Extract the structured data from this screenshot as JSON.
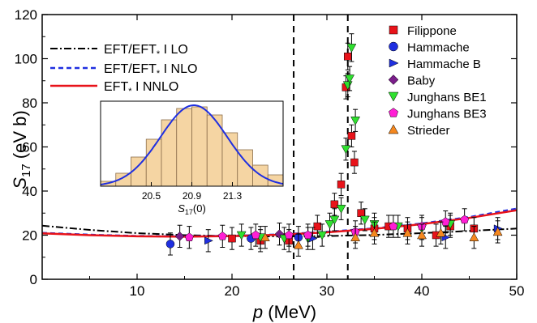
{
  "chart_data": {
    "type": "scatter",
    "xlabel_main": "p",
    "xlabel_unit": " (MeV)",
    "ylabel_main": "S",
    "ylabel_sub": "17",
    "ylabel_unit": " (eV b)",
    "xlim": [
      0,
      50
    ],
    "ylim": [
      0,
      120
    ],
    "x_ticks": [
      "10",
      "20",
      "30",
      "40",
      "50"
    ],
    "y_ticks": [
      "0",
      "20",
      "40",
      "60",
      "80",
      "100",
      "120"
    ],
    "vlines": [
      26.5,
      32.2
    ],
    "theory_curves": [
      {
        "label_main": "EFT/EFT",
        "label_sub": "*",
        "label_rest": " I LO",
        "style": "dashdot",
        "color": "#000000",
        "x": [
          0,
          5,
          10,
          15,
          20,
          25,
          30,
          35,
          40,
          45,
          50
        ],
        "y": [
          24.3,
          22.4,
          20.9,
          20.0,
          19.6,
          19.4,
          19.6,
          20.1,
          20.9,
          21.9,
          23.0
        ]
      },
      {
        "label_main": "EFT/EFT",
        "label_sub": "*",
        "label_rest": " I NLO",
        "style": "dashed",
        "color": "#1f2fe0",
        "x": [
          0,
          5,
          10,
          15,
          20,
          25,
          30,
          35,
          40,
          45,
          50
        ],
        "y": [
          21.0,
          20.2,
          19.6,
          19.4,
          19.7,
          20.3,
          21.5,
          23.1,
          25.3,
          28.2,
          32.0
        ]
      },
      {
        "label_main": "EFT",
        "label_sub": "*",
        "label_rest": " I NNLO",
        "style": "solid",
        "color": "#e8131a",
        "x": [
          0,
          5,
          10,
          15,
          20,
          25,
          30,
          35,
          40,
          45,
          50
        ],
        "y": [
          20.8,
          20.0,
          19.5,
          19.3,
          19.6,
          20.2,
          21.3,
          22.9,
          25.0,
          27.8,
          31.3
        ]
      }
    ],
    "series": [
      {
        "name": "Filippone",
        "marker": "square",
        "color": "#e8131a",
        "points": [
          [
            20,
            18.5
          ],
          [
            23,
            17.5
          ],
          [
            26,
            17.5
          ],
          [
            29,
            24
          ],
          [
            30.8,
            34
          ],
          [
            31.5,
            43
          ],
          [
            32,
            87
          ],
          [
            32.2,
            101
          ],
          [
            32.6,
            65
          ],
          [
            32.9,
            53
          ],
          [
            33.6,
            30
          ],
          [
            35,
            23
          ],
          [
            36.5,
            24
          ],
          [
            38.5,
            23
          ],
          [
            41.5,
            20
          ],
          [
            43,
            24
          ],
          [
            45.5,
            23
          ]
        ]
      },
      {
        "name": "Hammache",
        "marker": "circle",
        "color": "#1f2fe0",
        "points": [
          [
            13.5,
            16
          ],
          [
            22,
            18.5
          ],
          [
            27,
            19
          ]
        ]
      },
      {
        "name": "Hammache B",
        "marker": "triangle-right",
        "color": "#1f2fe0",
        "points": [
          [
            17.5,
            17.5
          ],
          [
            28.5,
            18.5
          ],
          [
            42.5,
            19
          ],
          [
            48,
            23
          ]
        ]
      },
      {
        "name": "Baby",
        "marker": "diamond",
        "color": "#7a1e8a",
        "points": [
          [
            14.5,
            19.5
          ],
          [
            25,
            20.5
          ]
        ]
      },
      {
        "name": "Junghans BE1",
        "marker": "triangle-down",
        "color": "#2fe02f",
        "points": [
          [
            21,
            20
          ],
          [
            23,
            19
          ],
          [
            25.5,
            18.5
          ],
          [
            28,
            18.5
          ],
          [
            29.5,
            20
          ],
          [
            30.3,
            25
          ],
          [
            30.8,
            27
          ],
          [
            31.5,
            32
          ],
          [
            32,
            59
          ],
          [
            32.2,
            88
          ],
          [
            32.4,
            91
          ],
          [
            32.6,
            105
          ],
          [
            33,
            72
          ],
          [
            34,
            27
          ],
          [
            35,
            25
          ],
          [
            37.5,
            24
          ],
          [
            40,
            23
          ],
          [
            43,
            25
          ]
        ]
      },
      {
        "name": "Junghans BE3",
        "marker": "pentagon",
        "color": "#ff1fd5",
        "points": [
          [
            15.5,
            19
          ],
          [
            19,
            19.5
          ],
          [
            22.5,
            20
          ],
          [
            26,
            20
          ],
          [
            28,
            20
          ],
          [
            33,
            21.5
          ],
          [
            37,
            24
          ],
          [
            40,
            24
          ],
          [
            42.5,
            26
          ],
          [
            44.5,
            27
          ]
        ]
      },
      {
        "name": "Strieder",
        "marker": "triangle-up",
        "color": "#f5881f",
        "points": [
          [
            23.5,
            19
          ],
          [
            27,
            15.5
          ],
          [
            33,
            19
          ],
          [
            35,
            21
          ],
          [
            38.5,
            21
          ],
          [
            40,
            20
          ],
          [
            42,
            21
          ],
          [
            45.5,
            19
          ],
          [
            48,
            21.5
          ]
        ]
      }
    ],
    "inset": {
      "xlabel_main": "S",
      "xlabel_sub": "17",
      "xlabel_rest": "(0)",
      "x_ticks": [
        "20.5",
        "20.9",
        "21.3"
      ],
      "x_tick_values": [
        20.5,
        20.9,
        21.3
      ],
      "xlim": [
        20.0,
        21.8
      ],
      "ylim": [
        0,
        1.05
      ],
      "bin_edges": [
        20.0,
        20.15,
        20.3,
        20.45,
        20.6,
        20.75,
        20.9,
        21.05,
        21.2,
        21.35,
        21.5,
        21.65,
        21.8
      ],
      "counts": [
        0.06,
        0.16,
        0.36,
        0.58,
        0.82,
        0.96,
        0.98,
        0.88,
        0.66,
        0.45,
        0.26,
        0.14
      ],
      "curve_mean": 20.92,
      "curve_sigma": 0.33,
      "curve_peak": 1.0,
      "bar_color": "#f5d5a3",
      "curve_color": "#1f2fe0"
    }
  }
}
